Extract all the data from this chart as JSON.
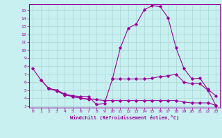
{
  "xlabel": "Windchill (Refroidissement éolien,°C)",
  "bg_color": "#c8f0f0",
  "grid_color": "#b0dada",
  "line_color": "#990099",
  "xlim": [
    -0.5,
    23.5
  ],
  "ylim": [
    2.8,
    15.8
  ],
  "xticks": [
    0,
    1,
    2,
    3,
    4,
    5,
    6,
    7,
    8,
    9,
    10,
    11,
    12,
    13,
    14,
    15,
    16,
    17,
    18,
    19,
    20,
    21,
    22,
    23
  ],
  "yticks": [
    3,
    4,
    5,
    6,
    7,
    8,
    9,
    10,
    11,
    12,
    13,
    14,
    15
  ],
  "curve1_x": [
    0,
    1,
    2,
    3,
    4,
    5,
    6,
    7,
    8,
    9,
    10,
    11,
    12,
    13,
    14,
    15,
    16,
    17,
    18,
    19,
    20,
    21,
    22,
    23
  ],
  "curve1_y": [
    7.7,
    6.3,
    5.2,
    5.0,
    4.5,
    4.3,
    4.2,
    4.2,
    3.2,
    3.3,
    6.4,
    10.3,
    12.8,
    13.3,
    15.1,
    15.6,
    15.5,
    14.1,
    10.3,
    7.7,
    6.4,
    6.5,
    5.1,
    4.3
  ],
  "curve2_x": [
    10,
    11,
    12,
    13,
    14,
    15,
    16,
    17,
    18,
    19,
    20,
    21,
    22,
    23
  ],
  "curve2_y": [
    6.4,
    6.4,
    6.4,
    6.4,
    6.4,
    6.5,
    6.7,
    6.8,
    7.0,
    6.0,
    5.8,
    5.8,
    5.0,
    3.1
  ],
  "curve3_x": [
    1,
    2,
    3,
    4,
    5,
    6,
    7
  ],
  "curve3_y": [
    6.3,
    5.2,
    5.0,
    4.5,
    4.2,
    4.0,
    3.8
  ],
  "curve4_x": [
    2,
    3,
    4,
    5,
    6,
    7,
    8,
    9,
    10,
    11,
    12,
    13,
    14,
    15,
    16,
    17,
    18,
    19,
    20,
    21,
    22,
    23
  ],
  "curve4_y": [
    5.2,
    4.9,
    4.4,
    4.2,
    4.0,
    3.9,
    3.8,
    3.7,
    3.7,
    3.7,
    3.7,
    3.7,
    3.7,
    3.7,
    3.7,
    3.7,
    3.7,
    3.5,
    3.4,
    3.4,
    3.4,
    3.1
  ]
}
